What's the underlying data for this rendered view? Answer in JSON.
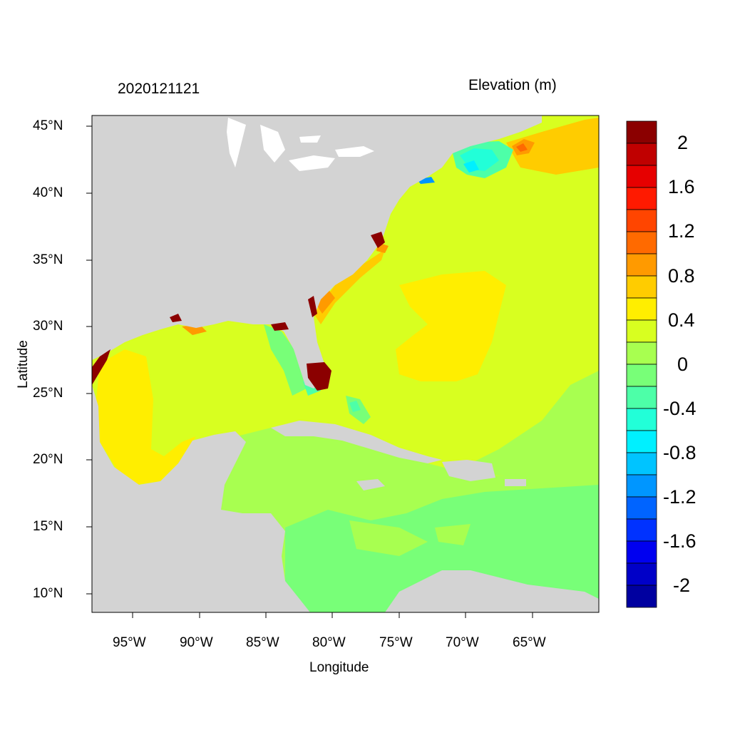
{
  "plot": {
    "left_title": "2020121121",
    "right_title": "Elevation (m)",
    "xlabel": "Longitude",
    "ylabel": "Latitude"
  },
  "axes": {
    "lon_ticks": [
      "95°W",
      "90°W",
      "85°W",
      "80°W",
      "75°W",
      "70°W",
      "65°W"
    ],
    "lat_ticks": [
      "45°N",
      "40°N",
      "35°N",
      "30°N",
      "25°N",
      "20°N",
      "15°N",
      "10°N"
    ],
    "lon_range": [
      -98,
      -60
    ],
    "lat_range": [
      8.5,
      46
    ]
  },
  "colorbar": {
    "labels": [
      "2",
      "1.6",
      "1.2",
      "0.8",
      "0.4",
      "0",
      "-0.4",
      "-0.8",
      "-1.2",
      "-1.6",
      "-2"
    ],
    "colors": [
      "#8b0000",
      "#c00000",
      "#e60000",
      "#ff1a00",
      "#ff4500",
      "#ff6a00",
      "#ff9a00",
      "#ffcc00",
      "#ffee00",
      "#d8ff20",
      "#a8ff50",
      "#78ff78",
      "#4dffa8",
      "#22ffd8",
      "#00f0ff",
      "#00c4ff",
      "#0096ff",
      "#0064ff",
      "#0032ff",
      "#0000f0",
      "#0000c8",
      "#0000a0"
    ]
  },
  "map_colors": {
    "land": "#d3d3d3",
    "ocean_base": "#d8ff20"
  }
}
